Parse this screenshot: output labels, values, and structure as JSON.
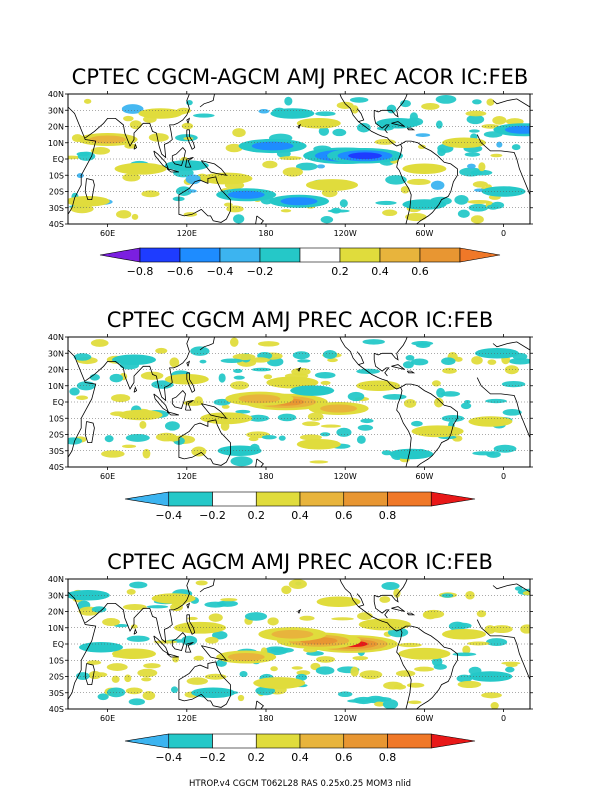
{
  "footer": "HTROP.v4  CGCM  T062L28  RAS  0.25x0.25  MOM3  nlid",
  "chart_data": [
    {
      "type": "heatmap",
      "title": "CPTEC CGCM-AGCM AMJ PREC ACOR IC:FEB",
      "xlabels": [
        "60E",
        "120E",
        "180",
        "120W",
        "60W",
        "0"
      ],
      "ylabels": [
        "40N",
        "30N",
        "20N",
        "10N",
        "EQ",
        "10S",
        "20S",
        "30S",
        "40S"
      ],
      "lon_range": [
        30,
        380
      ],
      "lat_range": [
        -40,
        40
      ],
      "colorbar": {
        "labels": [
          "-0.8",
          "-0.6",
          "-0.4",
          "-0.2",
          "0.2",
          "0.4",
          "0.6"
        ],
        "colors": [
          "#7b1fe0",
          "#1e3cff",
          "#1e8cff",
          "#3cb4f0",
          "#25c8c8",
          "#ffffff",
          "#e0dc3c",
          "#e8b43c",
          "#e89632",
          "#f07828"
        ],
        "bounds": [
          -1.0,
          -0.8,
          -0.6,
          -0.4,
          -0.3,
          -0.2,
          0.2,
          0.4,
          0.6,
          0.7,
          1.0
        ]
      },
      "anomalies": [
        {
          "lon": 185,
          "lat": 8,
          "value": -0.6
        },
        {
          "lon": 240,
          "lat": 2,
          "value": -0.8
        },
        {
          "lon": 255,
          "lat": 2,
          "value": -0.7
        },
        {
          "lon": 165,
          "lat": -22,
          "value": -0.5
        },
        {
          "lon": 205,
          "lat": -26,
          "value": -0.5
        },
        {
          "lon": 300,
          "lat": -28,
          "value": -0.3
        },
        {
          "lon": 375,
          "lat": 18,
          "value": -0.5
        },
        {
          "lon": 360,
          "lat": -20,
          "value": -0.3
        },
        {
          "lon": 120,
          "lat": -4,
          "value": -0.3
        },
        {
          "lon": 200,
          "lat": 28,
          "value": -0.3
        },
        {
          "lon": 280,
          "lat": 22,
          "value": -0.3
        },
        {
          "lon": 60,
          "lat": 12,
          "value": 0.5
        },
        {
          "lon": 85,
          "lat": -6,
          "value": 0.4
        },
        {
          "lon": 150,
          "lat": -12,
          "value": 0.4
        },
        {
          "lon": 100,
          "lat": 28,
          "value": 0.3
        },
        {
          "lon": 230,
          "lat": -16,
          "value": 0.4
        },
        {
          "lon": 300,
          "lat": -6,
          "value": 0.3
        },
        {
          "lon": 330,
          "lat": 10,
          "value": 0.3
        },
        {
          "lon": 220,
          "lat": 22,
          "value": 0.3
        },
        {
          "lon": 45,
          "lat": -26,
          "value": 0.3
        }
      ]
    },
    {
      "type": "heatmap",
      "title": "CPTEC CGCM AMJ PREC ACOR IC:FEB",
      "xlabels": [
        "60E",
        "120E",
        "180",
        "120W",
        "60W",
        "0"
      ],
      "ylabels": [
        "40N",
        "30N",
        "20N",
        "10N",
        "EQ",
        "10S",
        "20S",
        "30S",
        "40S"
      ],
      "lon_range": [
        30,
        380
      ],
      "lat_range": [
        -40,
        40
      ],
      "colorbar": {
        "labels": [
          "-0.4",
          "-0.2",
          "0.2",
          "0.4",
          "0.6",
          "0.8"
        ],
        "colors": [
          "#3cb4f0",
          "#25c8c8",
          "#ffffff",
          "#e0dc3c",
          "#e8b43c",
          "#e89632",
          "#f07828",
          "#e81818"
        ],
        "bounds": [
          -0.6,
          -0.4,
          -0.2,
          0.2,
          0.4,
          0.6,
          0.7,
          0.8,
          1.0
        ]
      },
      "anomalies": [
        {
          "lon": 195,
          "lat": 0,
          "value": 0.8
        },
        {
          "lon": 175,
          "lat": 2,
          "value": 0.6
        },
        {
          "lon": 235,
          "lat": -4,
          "value": 0.5
        },
        {
          "lon": 200,
          "lat": 12,
          "value": 0.4
        },
        {
          "lon": 150,
          "lat": -10,
          "value": 0.4
        },
        {
          "lon": 310,
          "lat": -18,
          "value": 0.4
        },
        {
          "lon": 265,
          "lat": 10,
          "value": 0.3
        },
        {
          "lon": 120,
          "lat": 14,
          "value": 0.3
        },
        {
          "lon": 85,
          "lat": -8,
          "value": 0.3
        },
        {
          "lon": 220,
          "lat": -26,
          "value": 0.3
        },
        {
          "lon": 350,
          "lat": -12,
          "value": 0.3
        },
        {
          "lon": 215,
          "lat": 7,
          "value": -0.3
        },
        {
          "lon": 80,
          "lat": 26,
          "value": -0.3
        },
        {
          "lon": 290,
          "lat": -32,
          "value": -0.3
        },
        {
          "lon": 160,
          "lat": -30,
          "value": -0.3
        },
        {
          "lon": 355,
          "lat": 30,
          "value": -0.3
        }
      ]
    },
    {
      "type": "heatmap",
      "title": "CPTEC AGCM AMJ PREC ACOR IC:FEB",
      "xlabels": [
        "60E",
        "120E",
        "180",
        "120W",
        "60W",
        "0"
      ],
      "ylabels": [
        "40N",
        "30N",
        "20N",
        "10N",
        "EQ",
        "10S",
        "20S",
        "30S",
        "40S"
      ],
      "lon_range": [
        30,
        380
      ],
      "lat_range": [
        -40,
        40
      ],
      "colorbar": {
        "labels": [
          "-0.4",
          "-0.2",
          "0.2",
          "0.4",
          "0.6",
          "0.8"
        ],
        "colors": [
          "#3cb4f0",
          "#25c8c8",
          "#ffffff",
          "#e0dc3c",
          "#e8b43c",
          "#e89632",
          "#f07828",
          "#e81818"
        ],
        "bounds": [
          -0.6,
          -0.4,
          -0.2,
          0.2,
          0.4,
          0.6,
          0.7,
          0.8,
          1.0
        ]
      },
      "anomalies": [
        {
          "lon": 245,
          "lat": 0,
          "value": 0.9
        },
        {
          "lon": 220,
          "lat": 2,
          "value": 0.8
        },
        {
          "lon": 200,
          "lat": 6,
          "value": 0.6
        },
        {
          "lon": 165,
          "lat": -8,
          "value": 0.5
        },
        {
          "lon": 130,
          "lat": 10,
          "value": 0.4
        },
        {
          "lon": 270,
          "lat": 12,
          "value": 0.4
        },
        {
          "lon": 300,
          "lat": -6,
          "value": 0.4
        },
        {
          "lon": 190,
          "lat": -24,
          "value": 0.4
        },
        {
          "lon": 80,
          "lat": -6,
          "value": 0.3
        },
        {
          "lon": 330,
          "lat": 6,
          "value": 0.3
        },
        {
          "lon": 110,
          "lat": 28,
          "value": 0.3
        },
        {
          "lon": 235,
          "lat": 26,
          "value": 0.3
        },
        {
          "lon": 55,
          "lat": -2,
          "value": -0.3
        },
        {
          "lon": 140,
          "lat": -30,
          "value": -0.3
        },
        {
          "lon": 350,
          "lat": -20,
          "value": -0.3
        },
        {
          "lon": 45,
          "lat": 30,
          "value": -0.3
        }
      ]
    }
  ]
}
